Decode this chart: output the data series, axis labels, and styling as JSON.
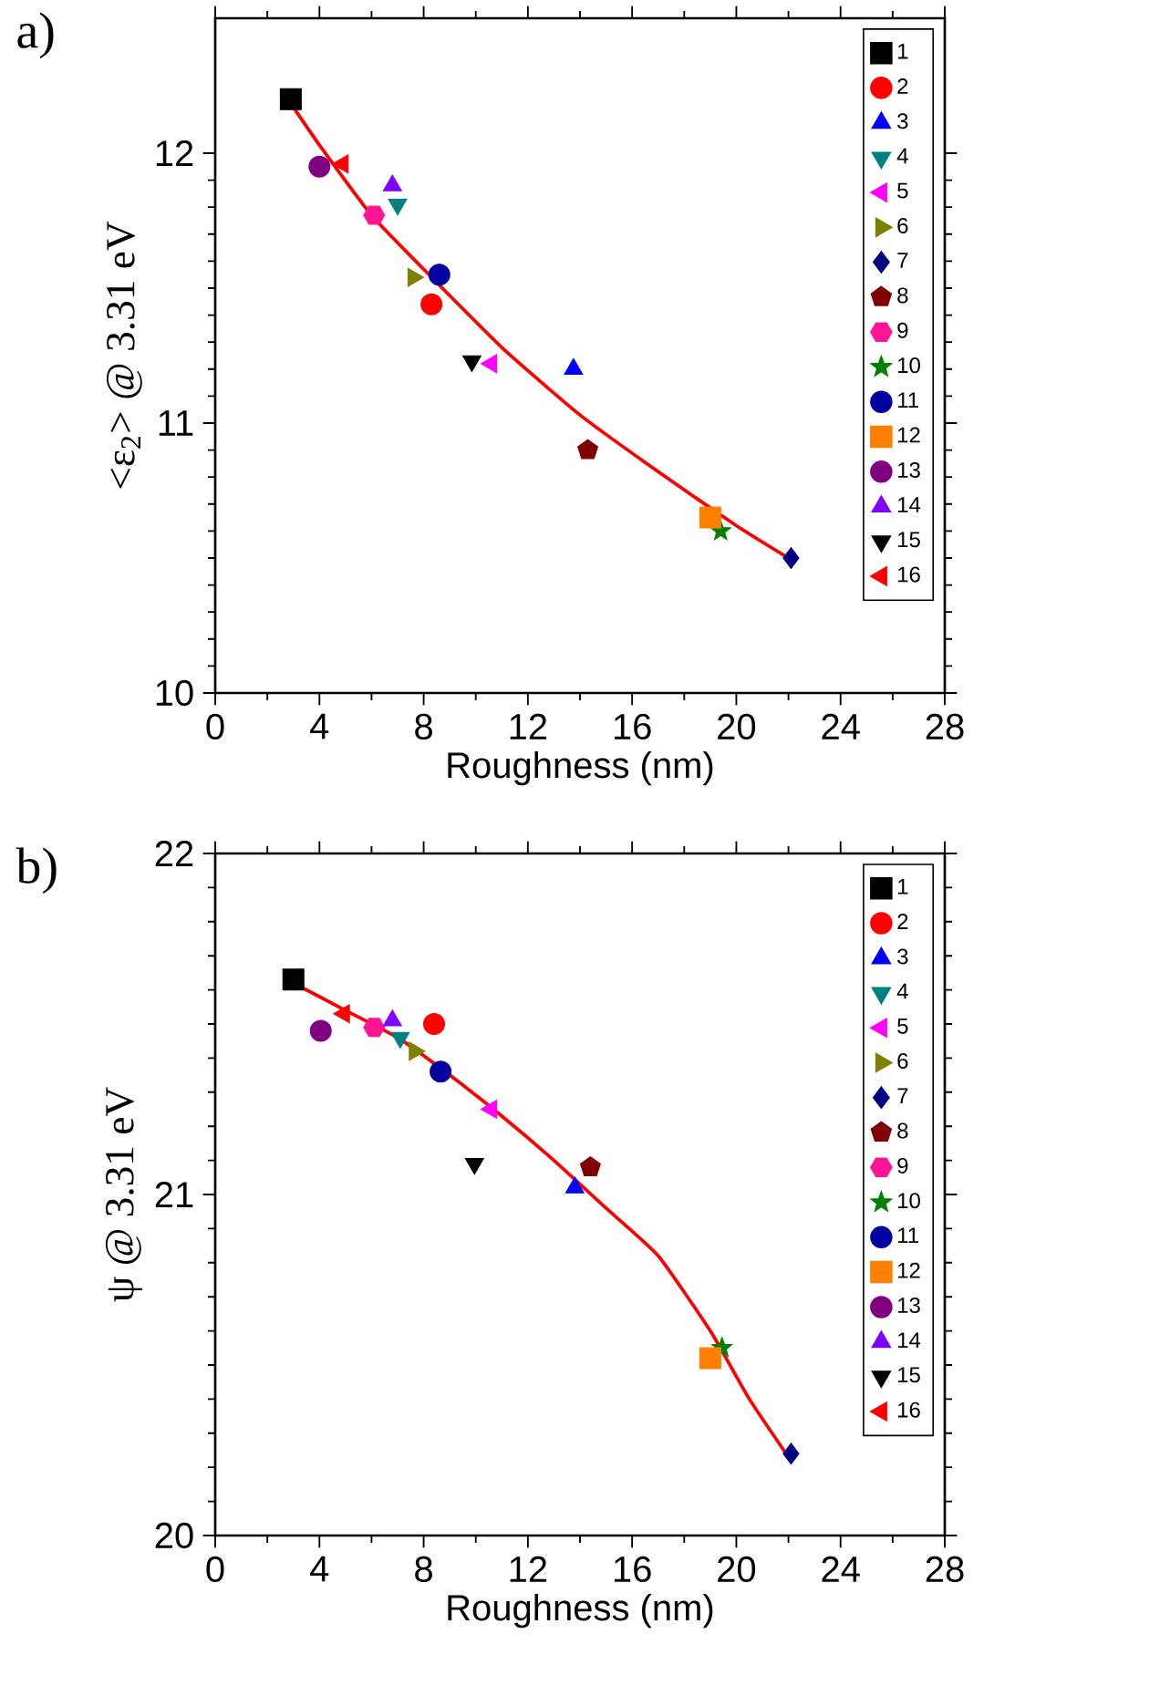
{
  "chart_data": [
    {
      "type": "scatter",
      "title": "a)",
      "xlabel": "Roughness (nm)",
      "ylabel": "<ε$_{2}$> @ 3.31 eV",
      "xlim": [
        0,
        28
      ],
      "xticks": [
        0,
        4,
        8,
        12,
        16,
        20,
        24,
        28
      ],
      "ylim": [
        10,
        12.5
      ],
      "yticks": [
        10,
        11,
        12
      ],
      "legend": "top right",
      "series": [
        {
          "name": "1",
          "color": "#000000",
          "marker": "square",
          "x": [
            2.9
          ],
          "values": [
            12.2
          ]
        },
        {
          "name": "2",
          "color": "#ff0000",
          "marker": "circle",
          "x": [
            8.3
          ],
          "values": [
            11.44
          ]
        },
        {
          "name": "3",
          "color": "#0000ff",
          "marker": "triangle",
          "x": [
            13.75
          ],
          "values": [
            11.2
          ]
        },
        {
          "name": "4",
          "color": "#008080",
          "marker": "triangle-down",
          "x": [
            7.0
          ],
          "values": [
            11.81
          ]
        },
        {
          "name": "5",
          "color": "#ff00ff",
          "marker": "triangle-left",
          "x": [
            10.6
          ],
          "values": [
            11.22
          ]
        },
        {
          "name": "6",
          "color": "#808000",
          "marker": "triangle-right",
          "x": [
            7.6
          ],
          "values": [
            11.54
          ]
        },
        {
          "name": "7",
          "color": "#000080",
          "marker": "diamond",
          "x": [
            22.1
          ],
          "values": [
            10.5
          ]
        },
        {
          "name": "8",
          "color": "#800000",
          "x": [
            14.3
          ],
          "values": [
            10.9
          ]
        },
        {
          "name": "9",
          "color": "#ff1493",
          "x": [
            6.1
          ],
          "values": [
            11.77
          ]
        },
        {
          "name": "10",
          "color": "#008000",
          "marker": "star",
          "x": [
            19.4
          ],
          "values": [
            10.6
          ]
        },
        {
          "name": "11",
          "color": "#0000a0",
          "marker": "circle",
          "x": [
            8.6
          ],
          "values": [
            11.55
          ]
        },
        {
          "name": "12",
          "color": "#ff8000",
          "marker": "square",
          "x": [
            19.0
          ],
          "values": [
            10.65
          ]
        },
        {
          "name": "13",
          "color": "#800080",
          "marker": "circle",
          "x": [
            4.0
          ],
          "values": [
            11.95
          ]
        },
        {
          "name": "14",
          "color": "#8000ff",
          "marker": "triangle",
          "x": [
            6.8
          ],
          "values": [
            11.88
          ]
        },
        {
          "name": "15",
          "color": "#000000",
          "marker": "triangle-down",
          "x": [
            9.85
          ],
          "values": [
            11.23
          ]
        },
        {
          "name": "16",
          "color": "#ff0000",
          "marker": "triangle-left",
          "x": [
            4.9
          ],
          "values": [
            11.96
          ]
        },
        {
          "type": "line",
          "color": "#ff0000",
          "marker": "none",
          "x": [
            3,
            4,
            6,
            8,
            11,
            14,
            17,
            20,
            22
          ],
          "values": [
            12.17,
            12.03,
            11.77,
            11.57,
            11.28,
            11.03,
            10.82,
            10.62,
            10.5
          ]
        }
      ]
    },
    {
      "type": "scatter",
      "title": "b)",
      "xlabel": "Roughness (nm)",
      "ylabel": "ψ @ 3.31 eV",
      "xlim": [
        0,
        28
      ],
      "xticks": [
        0,
        4,
        8,
        12,
        16,
        20,
        24,
        28
      ],
      "ylim": [
        20,
        22
      ],
      "yticks": [
        20,
        21,
        22
      ],
      "legend": "top right",
      "series": [
        {
          "name": "1",
          "color": "#000000",
          "marker": "square",
          "x": [
            3.0
          ],
          "values": [
            21.63
          ]
        },
        {
          "name": "2",
          "color": "#ff0000",
          "marker": "circle",
          "x": [
            8.4
          ],
          "values": [
            21.5
          ]
        },
        {
          "name": "3",
          "color": "#0000ff",
          "marker": "triangle",
          "x": [
            13.8
          ],
          "values": [
            21.02
          ]
        },
        {
          "name": "4",
          "color": "#008080",
          "marker": "triangle-down",
          "x": [
            7.1
          ],
          "values": [
            21.46
          ]
        },
        {
          "name": "5",
          "color": "#ff00ff",
          "marker": "triangle-left",
          "x": [
            10.6
          ],
          "values": [
            21.25
          ]
        },
        {
          "name": "6",
          "color": "#808000",
          "marker": "triangle-right",
          "x": [
            7.65
          ],
          "values": [
            21.42
          ]
        },
        {
          "name": "7",
          "color": "#000080",
          "marker": "diamond",
          "x": [
            22.1
          ],
          "values": [
            20.24
          ]
        },
        {
          "name": "8",
          "color": "#800000",
          "x": [
            14.4
          ],
          "values": [
            21.08
          ]
        },
        {
          "name": "9",
          "color": "#ff1493",
          "x": [
            6.1
          ],
          "values": [
            21.49
          ]
        },
        {
          "name": "10",
          "color": "#008000",
          "marker": "star",
          "x": [
            19.45
          ],
          "values": [
            20.55
          ]
        },
        {
          "name": "11",
          "color": "#0000a0",
          "marker": "circle",
          "x": [
            8.65
          ],
          "values": [
            21.36
          ]
        },
        {
          "name": "12",
          "color": "#ff8000",
          "marker": "square",
          "x": [
            19.0
          ],
          "values": [
            20.52
          ]
        },
        {
          "name": "13",
          "color": "#800080",
          "marker": "circle",
          "x": [
            4.05
          ],
          "values": [
            21.48
          ]
        },
        {
          "name": "14",
          "color": "#8000ff",
          "marker": "triangle",
          "x": [
            6.8
          ],
          "values": [
            21.51
          ]
        },
        {
          "name": "15",
          "color": "#000000",
          "marker": "triangle-down",
          "x": [
            9.95
          ],
          "values": [
            21.09
          ]
        },
        {
          "name": "16",
          "color": "#ff0000",
          "marker": "triangle-left",
          "x": [
            4.95
          ],
          "values": [
            21.53
          ]
        },
        {
          "type": "line",
          "color": "#ff0000",
          "marker": "none",
          "x": [
            3,
            5,
            7,
            9,
            11,
            13,
            15,
            17,
            19,
            20.5,
            22
          ],
          "values": [
            21.62,
            21.54,
            21.46,
            21.35,
            21.23,
            21.1,
            20.96,
            20.82,
            20.6,
            20.4,
            20.23
          ]
        }
      ]
    }
  ]
}
